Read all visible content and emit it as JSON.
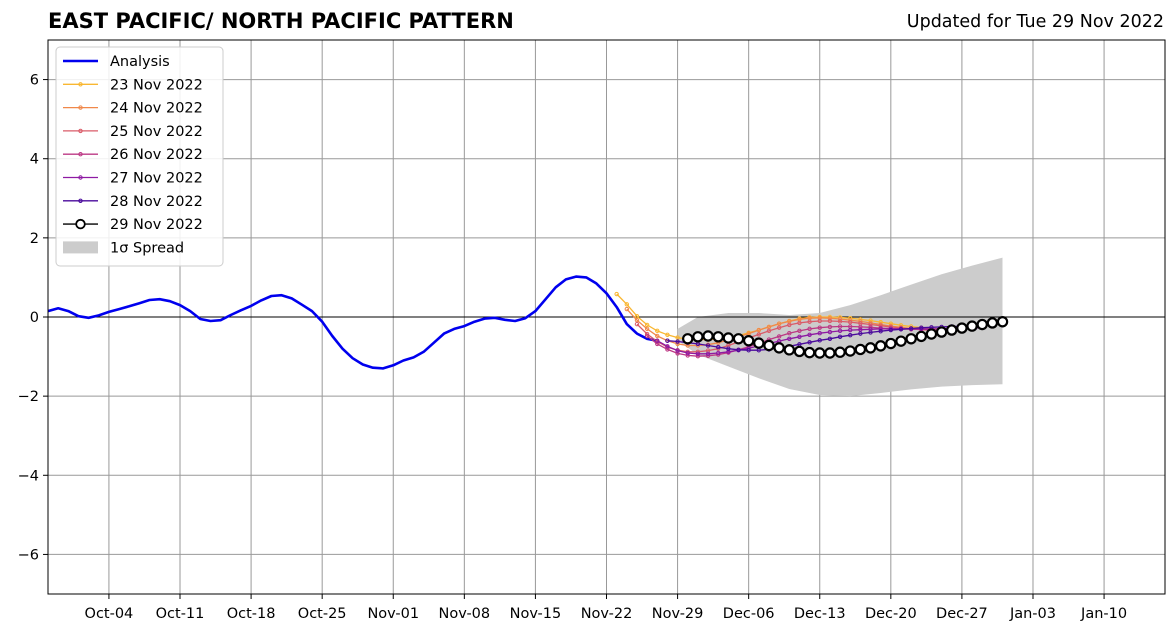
{
  "header": {
    "title": "EAST PACIFIC/ NORTH PACIFIC PATTERN",
    "updated": "Updated for Tue 29 Nov 2022"
  },
  "chart_data": {
    "type": "line",
    "title": "EAST PACIFIC/ NORTH PACIFIC PATTERN",
    "subtitle": "Updated for Tue 29 Nov 2022",
    "xlabel": "",
    "ylabel": "",
    "xlim": [
      "2022-09-28",
      "2023-01-16"
    ],
    "ylim": [
      -7,
      7
    ],
    "grid": true,
    "legend_position": "top-left",
    "x_ticks": [
      "2022-10-04",
      "2022-10-11",
      "2022-10-18",
      "2022-10-25",
      "2022-11-01",
      "2022-11-08",
      "2022-11-15",
      "2022-11-22",
      "2022-11-29",
      "2022-12-06",
      "2022-12-13",
      "2022-12-20",
      "2022-12-27",
      "2023-01-03",
      "2023-01-10"
    ],
    "x_tick_labels": [
      "Oct-04",
      "Oct-11",
      "Oct-18",
      "Oct-25",
      "Nov-01",
      "Nov-08",
      "Nov-15",
      "Nov-22",
      "Nov-29",
      "Dec-06",
      "Dec-13",
      "Dec-20",
      "Dec-27",
      "Jan-03",
      "Jan-10"
    ],
    "y_ticks": [
      6,
      4,
      2,
      0,
      -2,
      -4,
      -6
    ],
    "y_tick_labels": [
      "6",
      "4",
      "2",
      "0",
      "−2",
      "−4",
      "−6"
    ],
    "zero_line": 0,
    "colors": {
      "analysis": "#0000ee",
      "spread": "#cccccc",
      "grid": "#999999",
      "nov23": "#f9b731",
      "nov24": "#f0884a",
      "nov25": "#da5b68",
      "nov26": "#bc3884",
      "nov27": "#8e1aa3",
      "nov28": "#4a0a9c",
      "nov29": "#000000"
    },
    "legend": [
      {
        "label": "Analysis",
        "key": "analysis",
        "style": "thick-line"
      },
      {
        "label": "23 Nov 2022",
        "key": "nov23",
        "style": "dot-line"
      },
      {
        "label": "24 Nov 2022",
        "key": "nov24",
        "style": "dot-line"
      },
      {
        "label": "25 Nov 2022",
        "key": "nov25",
        "style": "dot-line"
      },
      {
        "label": "26 Nov 2022",
        "key": "nov26",
        "style": "dot-line"
      },
      {
        "label": "27 Nov 2022",
        "key": "nov27",
        "style": "dot-line"
      },
      {
        "label": "28 Nov 2022",
        "key": "nov28",
        "style": "dot-line"
      },
      {
        "label": "29 Nov 2022",
        "key": "nov29",
        "style": "circle-line"
      },
      {
        "label": "1σ Spread",
        "key": "spread",
        "style": "patch"
      }
    ],
    "analysis": {
      "name": "Analysis",
      "x_start": "2022-09-28",
      "step_days": 1,
      "values": [
        0.15,
        0.22,
        0.15,
        0.02,
        -0.02,
        0.04,
        0.13,
        0.2,
        0.27,
        0.35,
        0.43,
        0.45,
        0.4,
        0.3,
        0.15,
        -0.05,
        -0.1,
        -0.08,
        0.05,
        0.17,
        0.28,
        0.42,
        0.53,
        0.55,
        0.47,
        0.31,
        0.15,
        -0.12,
        -0.48,
        -0.8,
        -1.04,
        -1.2,
        -1.28,
        -1.3,
        -1.22,
        -1.1,
        -1.02,
        -0.88,
        -0.65,
        -0.42,
        -0.3,
        -0.23,
        -0.12,
        -0.04,
        -0.02,
        -0.07,
        -0.1,
        -0.03,
        0.15,
        0.45,
        0.75,
        0.95,
        1.02,
        1.0,
        0.85,
        0.6,
        0.25,
        -0.18,
        -0.42,
        -0.55,
        -0.6
      ]
    },
    "forecasts": [
      {
        "name": "23 Nov 2022",
        "key": "nov23",
        "x_start": "2022-11-23",
        "step_days": 1,
        "values": [
          0.58,
          0.32,
          0.02,
          -0.2,
          -0.35,
          -0.45,
          -0.52,
          -0.56,
          -0.57,
          -0.57,
          -0.55,
          -0.52,
          -0.47,
          -0.4,
          -0.33,
          -0.25,
          -0.17,
          -0.1,
          -0.04,
          -0.01,
          0.0,
          0.0,
          -0.01,
          -0.03,
          -0.06,
          -0.09,
          -0.13,
          -0.17,
          -0.21,
          -0.24,
          -0.27,
          -0.29,
          -0.3
        ]
      },
      {
        "name": "24 Nov 2022",
        "key": "nov24",
        "x_start": "2022-11-24",
        "step_days": 1,
        "values": [
          0.2,
          -0.08,
          -0.3,
          -0.48,
          -0.6,
          -0.68,
          -0.72,
          -0.72,
          -0.7,
          -0.65,
          -0.58,
          -0.5,
          -0.42,
          -0.33,
          -0.25,
          -0.17,
          -0.11,
          -0.06,
          -0.03,
          -0.02,
          -0.03,
          -0.05,
          -0.08,
          -0.11,
          -0.15,
          -0.19,
          -0.23,
          -0.26,
          -0.29,
          -0.31,
          -0.32,
          -0.33,
          -0.33
        ]
      },
      {
        "name": "25 Nov 2022",
        "key": "nov25",
        "x_start": "2022-11-25",
        "step_days": 1,
        "values": [
          -0.18,
          -0.43,
          -0.62,
          -0.76,
          -0.84,
          -0.88,
          -0.88,
          -0.85,
          -0.8,
          -0.72,
          -0.63,
          -0.53,
          -0.44,
          -0.35,
          -0.27,
          -0.2,
          -0.15,
          -0.12,
          -0.1,
          -0.1,
          -0.11,
          -0.13,
          -0.16,
          -0.19,
          -0.22,
          -0.25,
          -0.28,
          -0.3,
          -0.32,
          -0.33,
          -0.34,
          -0.34,
          -0.34
        ]
      },
      {
        "name": "26 Nov 2022",
        "key": "nov26",
        "x_start": "2022-11-26",
        "step_days": 1,
        "values": [
          -0.48,
          -0.68,
          -0.82,
          -0.92,
          -0.97,
          -0.99,
          -0.98,
          -0.95,
          -0.9,
          -0.83,
          -0.75,
          -0.66,
          -0.57,
          -0.49,
          -0.41,
          -0.35,
          -0.3,
          -0.27,
          -0.25,
          -0.24,
          -0.24,
          -0.25,
          -0.26,
          -0.28,
          -0.29,
          -0.3,
          -0.31,
          -0.31,
          -0.31,
          -0.3,
          -0.29,
          -0.28,
          -0.27
        ]
      },
      {
        "name": "27 Nov 2022",
        "key": "nov27",
        "x_start": "2022-11-27",
        "step_days": 1,
        "values": [
          -0.6,
          -0.74,
          -0.85,
          -0.91,
          -0.93,
          -0.93,
          -0.91,
          -0.88,
          -0.84,
          -0.79,
          -0.73,
          -0.67,
          -0.61,
          -0.55,
          -0.5,
          -0.45,
          -0.41,
          -0.38,
          -0.35,
          -0.33,
          -0.32,
          -0.31,
          -0.3,
          -0.3,
          -0.3,
          -0.3,
          -0.3,
          -0.3,
          -0.3,
          -0.3,
          -0.29,
          -0.28,
          -0.27
        ]
      },
      {
        "name": "28 Nov 2022",
        "key": "nov28",
        "x_start": "2022-11-28",
        "step_days": 1,
        "values": [
          -0.6,
          -0.62,
          -0.65,
          -0.68,
          -0.72,
          -0.76,
          -0.8,
          -0.83,
          -0.84,
          -0.84,
          -0.82,
          -0.78,
          -0.74,
          -0.69,
          -0.64,
          -0.59,
          -0.55,
          -0.5,
          -0.46,
          -0.42,
          -0.39,
          -0.36,
          -0.33,
          -0.31,
          -0.29,
          -0.27,
          -0.26,
          -0.25,
          -0.24,
          -0.23,
          -0.22,
          -0.21,
          -0.2
        ]
      },
      {
        "name": "29 Nov 2022",
        "key": "nov29",
        "x_start": "2022-11-30",
        "step_days": 1,
        "values": [
          -0.55,
          -0.5,
          -0.48,
          -0.5,
          -0.53,
          -0.55,
          -0.6,
          -0.66,
          -0.72,
          -0.78,
          -0.83,
          -0.87,
          -0.9,
          -0.91,
          -0.91,
          -0.89,
          -0.86,
          -0.82,
          -0.78,
          -0.73,
          -0.67,
          -0.61,
          -0.55,
          -0.49,
          -0.43,
          -0.38,
          -0.33,
          -0.28,
          -0.23,
          -0.19,
          -0.15,
          -0.12
        ]
      }
    ],
    "spread": {
      "name": "1σ Spread",
      "x": [
        "2022-11-29",
        "2022-12-01",
        "2022-12-04",
        "2022-12-07",
        "2022-12-10",
        "2022-12-13",
        "2022-12-16",
        "2022-12-19",
        "2022-12-22",
        "2022-12-25",
        "2022-12-28",
        "2022-12-31"
      ],
      "upper": [
        -0.3,
        0.0,
        0.1,
        0.1,
        0.05,
        0.1,
        0.3,
        0.55,
        0.82,
        1.08,
        1.3,
        1.5
      ],
      "lower": [
        -0.6,
        -0.95,
        -1.25,
        -1.55,
        -1.82,
        -1.97,
        -2.0,
        -1.92,
        -1.83,
        -1.76,
        -1.72,
        -1.7
      ]
    }
  }
}
